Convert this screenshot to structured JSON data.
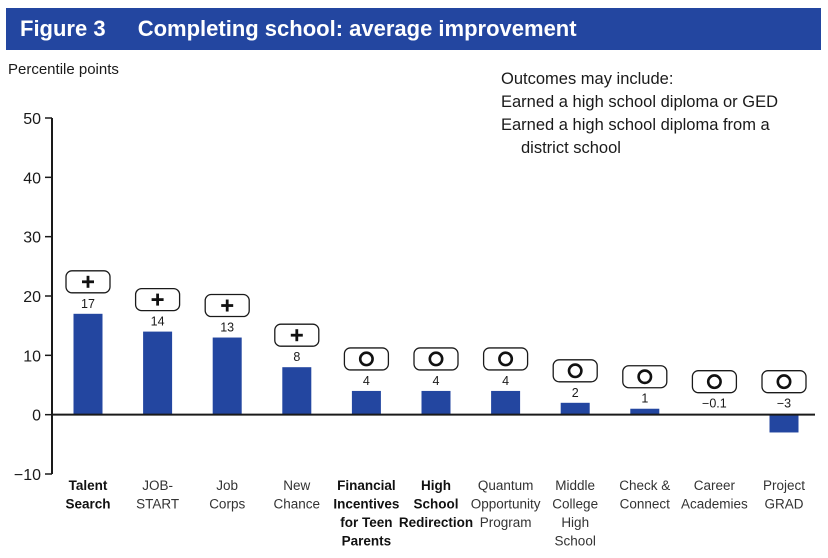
{
  "header": {
    "figure_label": "Figure 3",
    "title": "Completing school: average improvement"
  },
  "notes": {
    "heading": "Outcomes may include:",
    "line1": "Earned a high school diploma or GED",
    "line2": "Earned a high school diploma from a",
    "line3": "district school"
  },
  "colors": {
    "header_bg": "#2346a0",
    "bar": "#2346a0"
  },
  "chart_data": {
    "type": "bar",
    "ylabel": "Percentile points",
    "ylim": [
      -10,
      50
    ],
    "yticks": [
      -10,
      0,
      10,
      20,
      30,
      40,
      50
    ],
    "categories": [
      {
        "name": "Talent Search",
        "lines": [
          "Talent",
          "Search"
        ],
        "bold": true
      },
      {
        "name": "JOB-START",
        "lines": [
          "JOB-",
          "START"
        ],
        "bold": false
      },
      {
        "name": "Job Corps",
        "lines": [
          "Job",
          "Corps"
        ],
        "bold": false
      },
      {
        "name": "New Chance",
        "lines": [
          "New",
          "Chance"
        ],
        "bold": false
      },
      {
        "name": "Financial Incentives for Teen Parents",
        "lines": [
          "Financial",
          "Incentives",
          "for Teen",
          "Parents"
        ],
        "bold": true
      },
      {
        "name": "High School Redirection",
        "lines": [
          "High",
          "School",
          "Redirection"
        ],
        "bold": true
      },
      {
        "name": "Quantum Opportunity Program",
        "lines": [
          "Quantum",
          "Opportunity",
          "Program"
        ],
        "bold": false
      },
      {
        "name": "Middle College High School",
        "lines": [
          "Middle",
          "College",
          "High",
          "School"
        ],
        "bold": false
      },
      {
        "name": "Check & Connect",
        "lines": [
          "Check &",
          "Connect"
        ],
        "bold": false
      },
      {
        "name": "Career Academies",
        "lines": [
          "Career",
          "Academies"
        ],
        "bold": false
      },
      {
        "name": "Project GRAD",
        "lines": [
          "Project",
          "GRAD"
        ],
        "bold": false
      }
    ],
    "values": [
      17,
      14,
      13,
      8,
      4,
      4,
      4,
      2,
      1,
      -0.1,
      -3
    ],
    "value_labels": [
      "17",
      "14",
      "13",
      "8",
      "4",
      "4",
      "4",
      "2",
      "1",
      "−0.1",
      "−3"
    ],
    "effect_markers": [
      "plus",
      "plus",
      "plus",
      "plus",
      "circle",
      "circle",
      "circle",
      "circle",
      "circle",
      "circle",
      "circle"
    ],
    "marker_legend": {
      "plus": "+",
      "circle": "O"
    }
  }
}
